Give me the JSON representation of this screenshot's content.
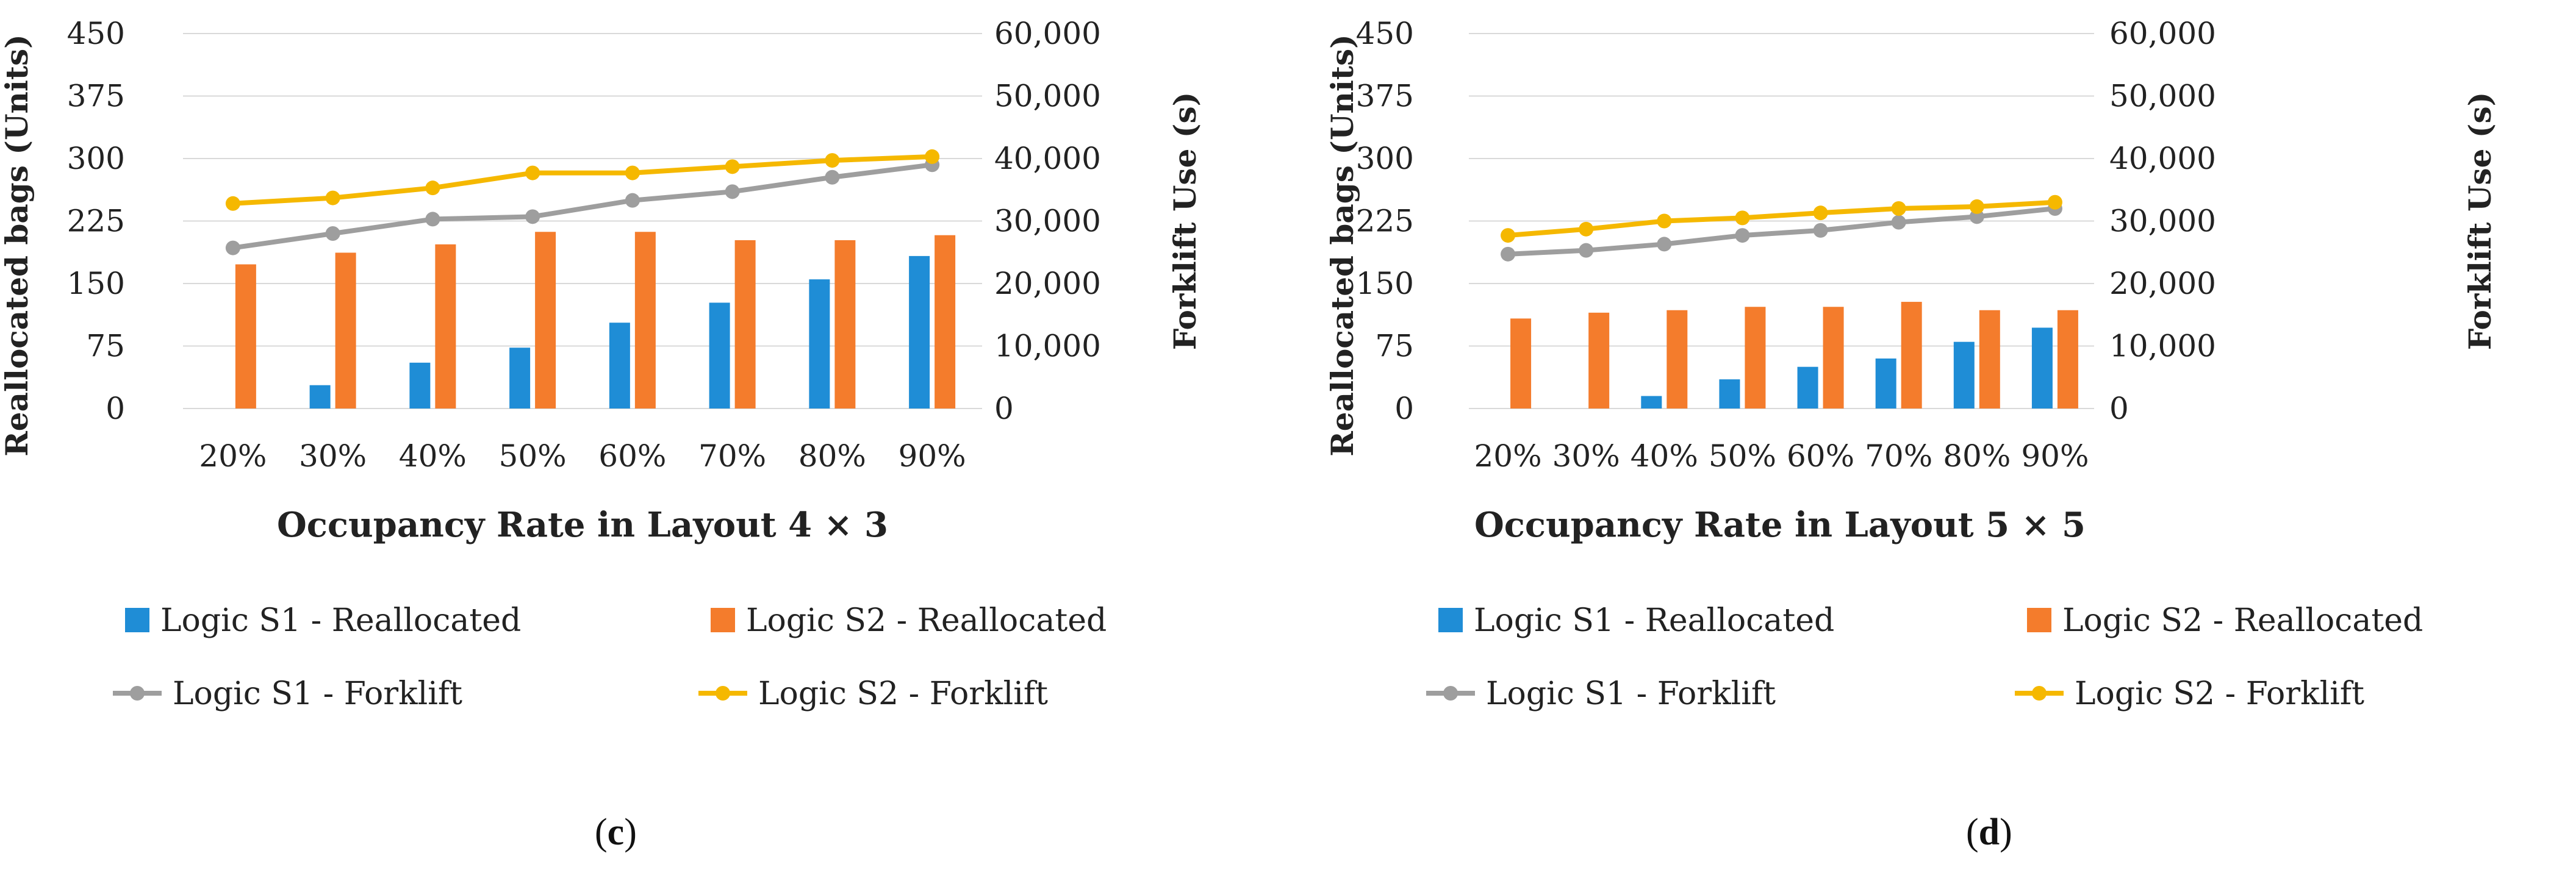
{
  "charts": [
    {
      "type": "bar+line",
      "panel_label": "c",
      "xlabel": "Occupancy Rate in Layout 4 × 3",
      "ylabel_left": "Reallocated bags (Units)",
      "ylabel_right": "Forklift Use (s)",
      "left_ticks": [
        "0",
        "75",
        "150",
        "225",
        "300",
        "375",
        "450"
      ],
      "right_ticks": [
        "0",
        "10,000",
        "20,000",
        "30,000",
        "40,000",
        "50,000",
        "60,000"
      ],
      "ylim_left": [
        0,
        450
      ],
      "ylim_right": [
        0,
        60000
      ],
      "categories": [
        "20%",
        "30%",
        "40%",
        "50%",
        "60%",
        "70%",
        "80%",
        "90%"
      ],
      "bar_series": [
        {
          "name": "Logic S1 - Reallocated",
          "color": "#1f8dd6",
          "values": [
            0,
            28,
            55,
            73,
            103,
            127,
            155,
            183
          ]
        },
        {
          "name": "Logic S2 - Reallocated",
          "color": "#f47c2c",
          "values": [
            173,
            187,
            197,
            212,
            212,
            202,
            202,
            208
          ]
        }
      ],
      "line_series": [
        {
          "name": "Logic S1 - Forklift",
          "color": "#9e9e9e",
          "values": [
            25700,
            28000,
            30300,
            30700,
            33300,
            34700,
            37000,
            39000
          ]
        },
        {
          "name": "Logic S2 - Forklift",
          "color": "#f5b800",
          "values": [
            32800,
            33700,
            35300,
            37700,
            37700,
            38700,
            39700,
            40300
          ]
        }
      ]
    },
    {
      "type": "bar+line",
      "panel_label": "d",
      "xlabel": "Occupancy Rate in Layout 5 × 5",
      "ylabel_left": "Reallocated bags (Units)",
      "ylabel_right": "Forklift Use (s)",
      "left_ticks": [
        "0",
        "75",
        "150",
        "225",
        "300",
        "375",
        "450"
      ],
      "right_ticks": [
        "0",
        "10,000",
        "20,000",
        "30,000",
        "40,000",
        "50,000",
        "60,000"
      ],
      "ylim_left": [
        0,
        450
      ],
      "ylim_right": [
        0,
        60000
      ],
      "categories": [
        "20%",
        "30%",
        "40%",
        "50%",
        "60%",
        "70%",
        "80%",
        "90%"
      ],
      "bar_series": [
        {
          "name": "Logic S1 - Reallocated",
          "color": "#1f8dd6",
          "values": [
            0,
            0,
            15,
            35,
            50,
            60,
            80,
            97
          ]
        },
        {
          "name": "Logic S2 - Reallocated",
          "color": "#f47c2c",
          "values": [
            108,
            115,
            118,
            122,
            122,
            128,
            118,
            118
          ]
        }
      ],
      "line_series": [
        {
          "name": "Logic S1 - Forklift",
          "color": "#9e9e9e",
          "values": [
            24700,
            25300,
            26300,
            27700,
            28500,
            29800,
            30700,
            32000
          ]
        },
        {
          "name": "Logic S2 - Forklift",
          "color": "#f5b800",
          "values": [
            27700,
            28700,
            30000,
            30500,
            31300,
            32000,
            32300,
            33000
          ]
        }
      ]
    }
  ]
}
